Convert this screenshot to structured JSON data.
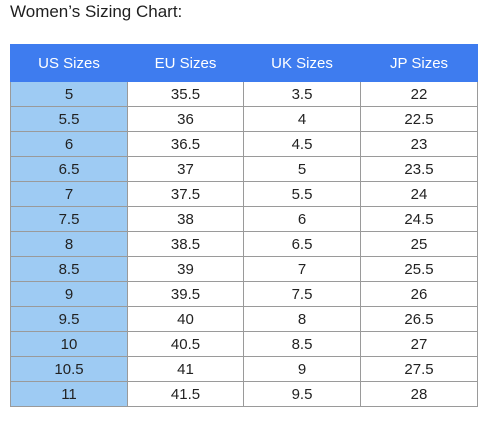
{
  "title": "Women’s Sizing Chart:",
  "columns": [
    "US Sizes",
    "EU Sizes",
    "UK Sizes",
    "JP Sizes"
  ],
  "rows": [
    [
      "5",
      "35.5",
      "3.5",
      "22"
    ],
    [
      "5.5",
      "36",
      "4",
      "22.5"
    ],
    [
      "6",
      "36.5",
      "4.5",
      "23"
    ],
    [
      "6.5",
      "37",
      "5",
      "23.5"
    ],
    [
      "7",
      "37.5",
      "5.5",
      "24"
    ],
    [
      "7.5",
      "38",
      "6",
      "24.5"
    ],
    [
      "8",
      "38.5",
      "6.5",
      "25"
    ],
    [
      "8.5",
      "39",
      "7",
      "25.5"
    ],
    [
      "9",
      "39.5",
      "7.5",
      "26"
    ],
    [
      "9.5",
      "40",
      "8",
      "26.5"
    ],
    [
      "10",
      "40.5",
      "8.5",
      "27"
    ],
    [
      "10.5",
      "41",
      "9",
      "27.5"
    ],
    [
      "11",
      "41.5",
      "9.5",
      "28"
    ]
  ],
  "colors": {
    "header_bg": "#3e7cef",
    "header_text": "#ffffff",
    "us_column_bg": "#9ecbf3",
    "border": "#9a9a9a"
  }
}
